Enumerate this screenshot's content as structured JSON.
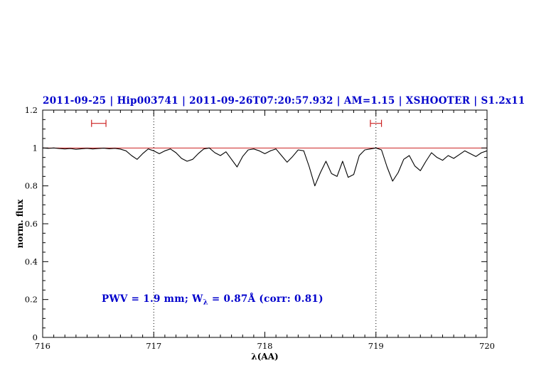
{
  "chart_data": {
    "type": "line",
    "title": "2011-09-25 | Hip003741 | 2011-09-26T07:20:57.932 | AM=1.15 | XSHOOTER | S1.2x11",
    "xlabel": "λ(AA)",
    "ylabel": "norm. flux",
    "xlim": [
      716,
      720
    ],
    "ylim": [
      0,
      1.2
    ],
    "x_ticks": [
      716,
      717,
      718,
      719,
      720
    ],
    "x_tick_labels": [
      "716",
      "717",
      "718",
      "719",
      "720"
    ],
    "y_ticks": [
      0,
      0.2,
      0.4,
      0.6,
      0.8,
      1,
      1.2
    ],
    "y_tick_labels": [
      "0",
      "0.2",
      "0.4",
      "0.6",
      "0.8",
      "1",
      "1.2"
    ],
    "x_minor_step": 0.1,
    "y_minor_step": 0.05,
    "grid": false,
    "legend": "none",
    "dotted_vlines": [
      717,
      719
    ],
    "continuum_line": {
      "y": 1.0,
      "color": "#cc2222"
    },
    "bandpass_markers": [
      {
        "x_start": 716.44,
        "x_end": 716.57,
        "y": 1.13,
        "color": "#cc2222"
      },
      {
        "x_start": 718.95,
        "x_end": 719.05,
        "y": 1.13,
        "color": "#cc2222"
      }
    ],
    "series": [
      {
        "name": "spectrum",
        "color": "#000000",
        "x_start": 716.0,
        "x_step": 0.05,
        "values": [
          1.0,
          0.998,
          1.0,
          0.997,
          0.995,
          0.997,
          0.993,
          0.996,
          0.998,
          0.995,
          0.997,
          0.999,
          0.996,
          0.998,
          0.994,
          0.985,
          0.96,
          0.94,
          0.97,
          0.995,
          0.985,
          0.97,
          0.985,
          0.995,
          0.975,
          0.945,
          0.93,
          0.94,
          0.97,
          0.995,
          1.0,
          0.975,
          0.96,
          0.98,
          0.94,
          0.9,
          0.955,
          0.99,
          0.995,
          0.985,
          0.97,
          0.985,
          0.995,
          0.96,
          0.925,
          0.955,
          0.99,
          0.985,
          0.9,
          0.8,
          0.87,
          0.93,
          0.865,
          0.85,
          0.93,
          0.845,
          0.86,
          0.96,
          0.99,
          0.995,
          1.0,
          0.99,
          0.9,
          0.825,
          0.87,
          0.94,
          0.96,
          0.905,
          0.88,
          0.93,
          0.975,
          0.95,
          0.935,
          0.96,
          0.945,
          0.965,
          0.985,
          0.97,
          0.955,
          0.975,
          0.985
        ]
      }
    ]
  },
  "annotation": {
    "prefix": "PWV = 1.9 mm; W",
    "sub": "λ",
    "suffix": " = 0.87Å (corr: 0.81)"
  },
  "colors": {
    "title_blue": "#0000cc",
    "line_black": "#000000",
    "marker_red": "#cc2222",
    "background": "#ffffff"
  }
}
